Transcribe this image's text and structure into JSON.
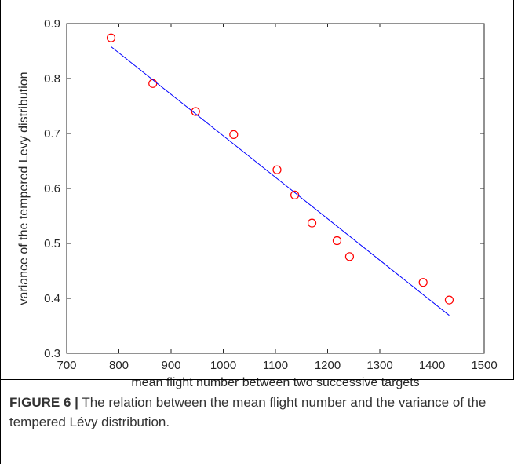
{
  "caption": {
    "label": "FIGURE 6 |",
    "text": "The relation between the mean flight number and the variance of the tempered Lévy distribution."
  },
  "chart_data": {
    "type": "scatter",
    "title": "",
    "xlabel": "mean flight number between two successive targets",
    "ylabel": "variance of the tempered Levy distribution",
    "xlim": [
      700,
      1500
    ],
    "ylim": [
      0.3,
      0.9
    ],
    "xticks": [
      "700",
      "800",
      "900",
      "1000",
      "1100",
      "1200",
      "1300",
      "1400",
      "1500"
    ],
    "yticks": [
      "0.3",
      "0.4",
      "0.5",
      "0.6",
      "0.7",
      "0.8",
      "0.9"
    ],
    "grid": false,
    "series": [
      {
        "kind": "scatter",
        "marker": "open-circle",
        "color": "#ff0000",
        "x": [
          785,
          865,
          947,
          1020,
          1103,
          1137,
          1170,
          1218,
          1242,
          1383,
          1433
        ],
        "y": [
          0.874,
          0.791,
          0.74,
          0.698,
          0.634,
          0.588,
          0.537,
          0.505,
          0.476,
          0.429,
          0.397
        ]
      },
      {
        "kind": "line",
        "color": "#0000ff",
        "x": [
          785,
          1433
        ],
        "y": [
          0.858,
          0.369
        ]
      }
    ]
  }
}
